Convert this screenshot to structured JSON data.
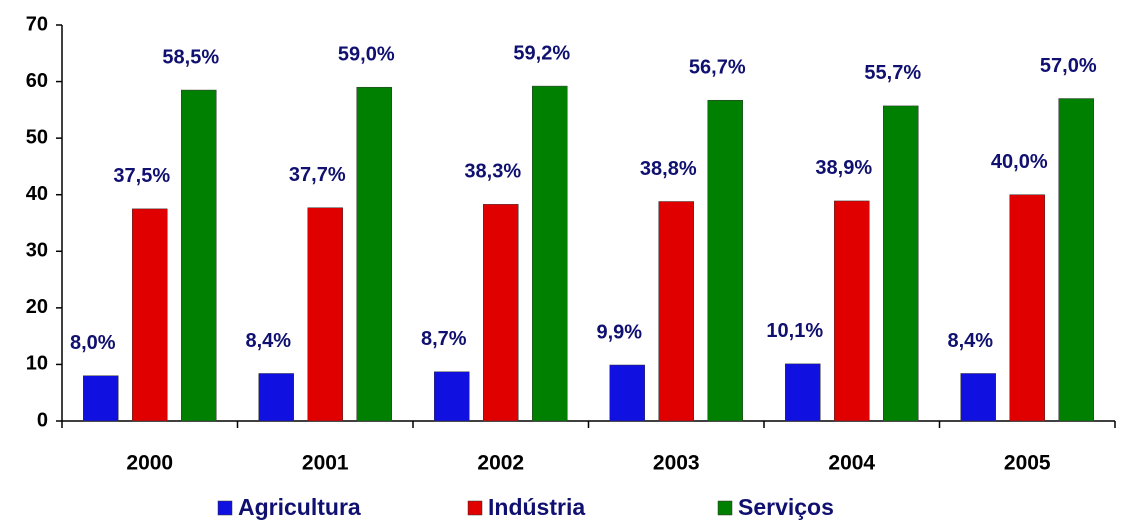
{
  "chart_data": {
    "type": "bar",
    "categories": [
      "2000",
      "2001",
      "2002",
      "2003",
      "2004",
      "2005"
    ],
    "series": [
      {
        "name": "Agricultura",
        "color": "#1010e0",
        "values": [
          8.0,
          8.4,
          8.7,
          9.9,
          10.1,
          8.4
        ],
        "value_labels": [
          "8,0%",
          "8,4%",
          "8,7%",
          "9,9%",
          "10,1%",
          "8,4%"
        ]
      },
      {
        "name": "Indústria",
        "color": "#e00000",
        "values": [
          37.5,
          37.7,
          38.3,
          38.8,
          38.9,
          40.0
        ],
        "value_labels": [
          "37,5%",
          "37,7%",
          "38,3%",
          "38,8%",
          "38,9%",
          "40,0%"
        ]
      },
      {
        "name": "Serviços",
        "color": "#008000",
        "values": [
          58.5,
          59.0,
          59.2,
          56.7,
          55.7,
          57.0
        ],
        "value_labels": [
          "58,5%",
          "59,0%",
          "59,2%",
          "56,7%",
          "55,7%",
          "57,0%"
        ]
      }
    ],
    "ylim": [
      0,
      70
    ],
    "yticks": [
      0,
      10,
      20,
      30,
      40,
      50,
      60,
      70
    ],
    "legend": "bottom"
  }
}
